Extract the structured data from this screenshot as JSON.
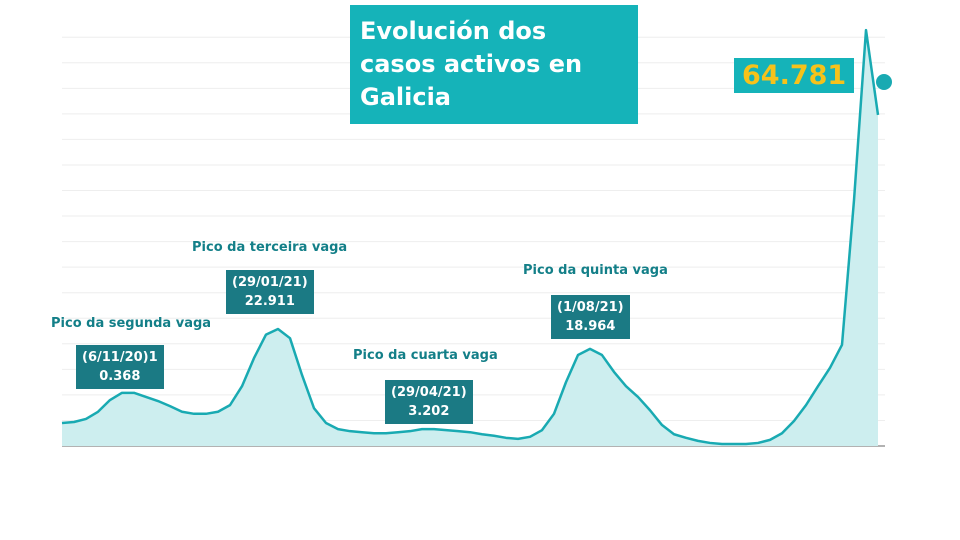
{
  "chart_data": {
    "type": "area",
    "title": "Evolución dos casos activos en Galicia",
    "color": "#19aab2",
    "fill": "#cdeeef",
    "grid": true,
    "ylim": [
      0,
      82000
    ],
    "yticks": [
      0,
      5000,
      10000,
      15000,
      20000,
      25000,
      30000,
      35000,
      40000,
      45000,
      50000,
      55000,
      60000,
      65000,
      70000,
      75000,
      80000
    ],
    "values": [
      4500,
      4700,
      5300,
      6700,
      9000,
      10400,
      10400,
      9600,
      8800,
      7800,
      6700,
      6300,
      6300,
      6700,
      8000,
      11700,
      17200,
      21800,
      22900,
      21100,
      13900,
      7400,
      4500,
      3300,
      2900,
      2700,
      2500,
      2500,
      2700,
      2900,
      3300,
      3300,
      3100,
      2900,
      2700,
      2300,
      2000,
      1600,
      1400,
      1800,
      3100,
      6300,
      12500,
      17800,
      19000,
      17800,
      14500,
      11700,
      9600,
      7000,
      4100,
      2300,
      1600,
      1000,
      600,
      400,
      400,
      400,
      600,
      1200,
      2500,
      4900,
      8000,
      11700,
      15300,
      19800,
      48100,
      81400,
      64781
    ],
    "annotations": [
      {
        "heading": "Pico da segunda vaga",
        "lines": [
          "(6/11/20)1",
          "0.368"
        ]
      },
      {
        "heading": "Pico da terceira vaga",
        "lines": [
          "(29/01/21)",
          "22.911"
        ]
      },
      {
        "heading": "Pico da cuarta vaga",
        "lines": [
          "(29/04/21)",
          "3.202"
        ]
      },
      {
        "heading": "Pico da quinta vaga",
        "lines": [
          "(1/08/21)",
          "18.964"
        ]
      }
    ],
    "end_label": "64.781"
  }
}
